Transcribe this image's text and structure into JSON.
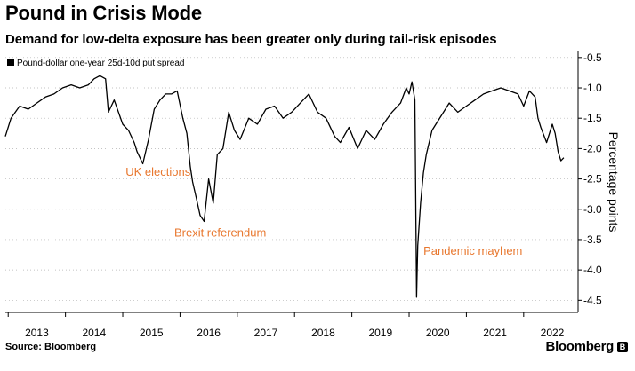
{
  "header": {
    "title": "Pound in Crisis Mode",
    "subtitle": "Demand for low-delta exposure has been greater only during tail-risk episodes"
  },
  "footer": {
    "source": "Source: Bloomberg",
    "brand": "Bloomberg"
  },
  "colors": {
    "line": "#000000",
    "annotation": "#e8772e",
    "grid": "#b0b0b0"
  },
  "chart_data": {
    "type": "line",
    "title": "Pound in Crisis Mode",
    "subtitle": "Demand for low-delta exposure has been greater only during tail-risk episodes",
    "ylabel": "Percentage points",
    "ylim": [
      -4.7,
      -0.4
    ],
    "y_inverted": true,
    "y_ticks": [
      -0.5,
      -1.0,
      -1.5,
      -2.0,
      -2.5,
      -3.0,
      -3.5,
      -4.0,
      -4.5
    ],
    "y_tick_labels": [
      "-0.5",
      "-1.0",
      "-1.5",
      "-2.0",
      "-2.5",
      "-3.0",
      "-3.5",
      "-4.0",
      "-4.5"
    ],
    "xlim": [
      2012.45,
      2022.45
    ],
    "x_ticks": [
      2013,
      2014,
      2015,
      2016,
      2017,
      2018,
      2019,
      2020,
      2021,
      2022
    ],
    "x_tick_labels": [
      "2013",
      "2014",
      "2015",
      "2016",
      "2017",
      "2018",
      "2019",
      "2020",
      "2021",
      "2022"
    ],
    "grid": true,
    "legend": {
      "position": "top-left",
      "entries": [
        "Pound-dollar one-year 25d-10d put spread"
      ]
    },
    "annotations": [
      {
        "text": "UK elections",
        "x": 2014.55,
        "y": -2.45
      },
      {
        "text": "Brexit referendum",
        "x": 2015.4,
        "y": -3.45
      },
      {
        "text": "Pandemic mayhem",
        "x": 2019.75,
        "y": -3.75
      }
    ],
    "series": [
      {
        "name": "Pound-dollar one-year 25d-10d put spread",
        "x": [
          2012.45,
          2012.55,
          2012.7,
          2012.85,
          2013.0,
          2013.15,
          2013.3,
          2013.45,
          2013.6,
          2013.75,
          2013.9,
          2014.0,
          2014.1,
          2014.2,
          2014.25,
          2014.35,
          2014.5,
          2014.6,
          2014.7,
          2014.75,
          2014.85,
          2014.95,
          2015.05,
          2015.15,
          2015.25,
          2015.35,
          2015.45,
          2015.55,
          2015.62,
          2015.68,
          2015.72,
          2015.78,
          2015.85,
          2015.92,
          2016.0,
          2016.08,
          2016.15,
          2016.25,
          2016.35,
          2016.45,
          2016.55,
          2016.7,
          2016.85,
          2017.0,
          2017.15,
          2017.3,
          2017.45,
          2017.6,
          2017.75,
          2017.9,
          2018.05,
          2018.2,
          2018.3,
          2018.45,
          2018.6,
          2018.75,
          2018.9,
          2019.05,
          2019.2,
          2019.35,
          2019.45,
          2019.5,
          2019.55,
          2019.6,
          2019.63,
          2019.65,
          2019.7,
          2019.75,
          2019.8,
          2019.9,
          2020.0,
          2020.1,
          2020.2,
          2020.35,
          2020.5,
          2020.65,
          2020.8,
          2020.95,
          2021.1,
          2021.25,
          2021.4,
          2021.5,
          2021.6,
          2021.7,
          2021.75,
          2021.8,
          2021.9,
          2022.0,
          2022.05,
          2022.1,
          2022.15,
          2022.2
        ],
        "values": [
          -1.8,
          -1.5,
          -1.3,
          -1.35,
          -1.25,
          -1.15,
          -1.1,
          -1.0,
          -0.95,
          -1.0,
          -0.95,
          -0.85,
          -0.8,
          -0.85,
          -1.4,
          -1.2,
          -1.6,
          -1.7,
          -1.9,
          -2.05,
          -2.25,
          -1.85,
          -1.35,
          -1.2,
          -1.1,
          -1.1,
          -1.05,
          -1.5,
          -1.75,
          -2.3,
          -2.55,
          -2.8,
          -3.1,
          -3.2,
          -2.5,
          -2.9,
          -2.1,
          -2.0,
          -1.4,
          -1.7,
          -1.85,
          -1.5,
          -1.6,
          -1.35,
          -1.3,
          -1.5,
          -1.4,
          -1.25,
          -1.1,
          -1.4,
          -1.5,
          -1.8,
          -1.9,
          -1.65,
          -2.0,
          -1.7,
          -1.85,
          -1.6,
          -1.4,
          -1.25,
          -1.0,
          -1.1,
          -0.9,
          -1.2,
          -4.45,
          -3.6,
          -2.9,
          -2.4,
          -2.1,
          -1.7,
          -1.55,
          -1.4,
          -1.25,
          -1.4,
          -1.3,
          -1.2,
          -1.1,
          -1.05,
          -1.0,
          -1.05,
          -1.1,
          -1.3,
          -1.05,
          -1.15,
          -1.5,
          -1.65,
          -1.9,
          -1.6,
          -1.75,
          -2.05,
          -2.2,
          -2.15
        ]
      }
    ]
  }
}
